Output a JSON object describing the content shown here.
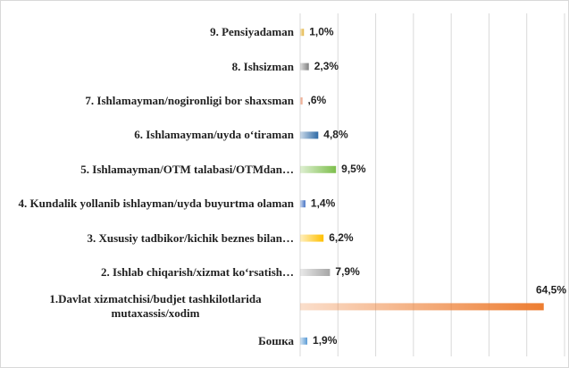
{
  "chart_data": {
    "type": "bar",
    "orientation": "horizontal",
    "categories": [
      "9. Pensiyadaman",
      "8. Ishsizman",
      "7. Ishlamayman/nogironligi bor shaxsman",
      "6. Ishlamayman/uyda  o‘tiraman",
      "5. Ishlamayman/OTM talabasi/OTMdan…",
      "4. Kundalik yollanib ishlayman/uyda buyurtma olaman",
      "3. Xususiy tadbikor/kichik beznes bilan…",
      "2. Ishlab chiqarish/xizmat ko‘rsatish…",
      "1.Davlat xizmatchisi/budjet tashkilotlarida mutaxassis/xodim",
      "Бошка"
    ],
    "values": [
      1.0,
      2.3,
      0.6,
      4.8,
      9.5,
      1.4,
      6.2,
      7.9,
      64.5,
      1.9
    ],
    "value_labels": [
      "1,0%",
      "2,3%",
      ",6%",
      "4,8%",
      "9,5%",
      "1,4%",
      "6,2%",
      "7,9%",
      "64,5%",
      "1,9%"
    ],
    "colors": [
      "#e3b23c",
      "#7f7f7f",
      "#e8906e",
      "#2e6aa6",
      "#7dbf4c",
      "#4472c4",
      "#ffc000",
      "#a6a6a6",
      "#ed7d31",
      "#5b9bd5"
    ],
    "xlim": [
      0,
      70
    ],
    "xticks": [
      0,
      10,
      20,
      30,
      40,
      50,
      60,
      70
    ],
    "grid": true
  }
}
